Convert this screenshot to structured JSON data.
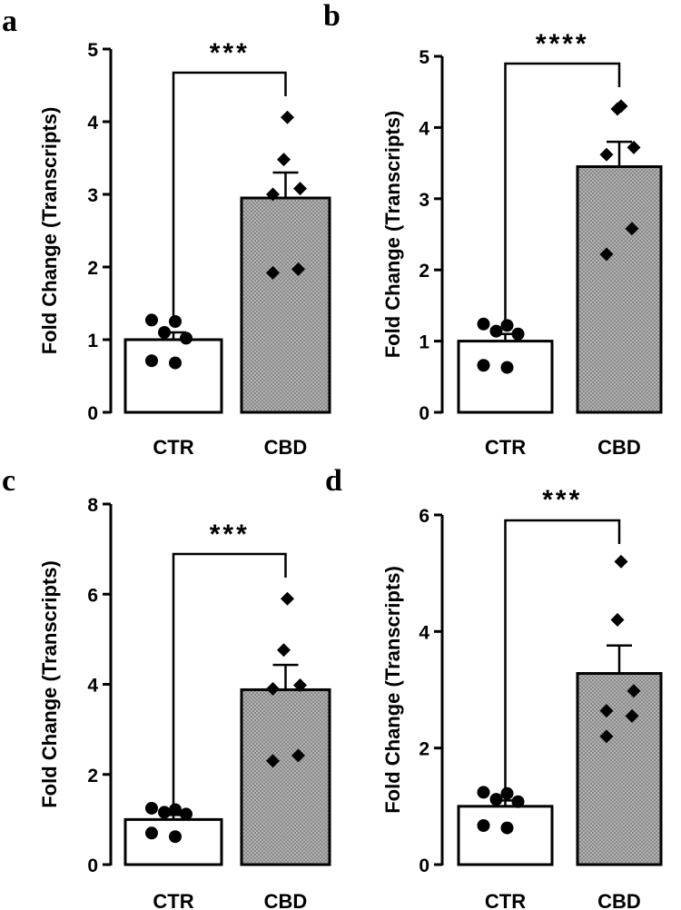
{
  "colors": {
    "ink": "#000000",
    "bar_ctr": "#ffffff",
    "bar_cbd": "#9a9a9a",
    "background": "#ffffff"
  },
  "chart_data": [
    {
      "panel": "a",
      "type": "bar",
      "ylabel": "Fold Change (Transcripts)",
      "categories": [
        "CTR",
        "CBD"
      ],
      "values": [
        1.0,
        2.95
      ],
      "errors": [
        0.1,
        0.35
      ],
      "ylim": [
        0,
        5
      ],
      "yticks": [
        0,
        1,
        2,
        3,
        4,
        5
      ],
      "significance": "***",
      "points": [
        [
          1.27,
          1.25,
          1.1,
          1.02,
          0.71,
          0.68
        ],
        [
          4.06,
          3.48,
          3.08,
          3.0,
          1.97,
          1.92
        ]
      ]
    },
    {
      "panel": "b",
      "type": "bar",
      "ylabel": "Fold Change (Transcripts)",
      "categories": [
        "CTR",
        "CBD"
      ],
      "values": [
        1.0,
        3.45
      ],
      "errors": [
        0.1,
        0.35
      ],
      "ylim": [
        0,
        5
      ],
      "yticks": [
        0,
        1,
        2,
        3,
        4,
        5
      ],
      "significance": "****",
      "points": [
        [
          1.24,
          1.22,
          1.14,
          1.1,
          0.66,
          0.63
        ],
        [
          4.3,
          4.26,
          3.72,
          3.62,
          2.58,
          2.22
        ]
      ]
    },
    {
      "panel": "c",
      "type": "bar",
      "ylabel": "Fold Change (Transcripts)",
      "categories": [
        "CTR",
        "CBD"
      ],
      "values": [
        1.0,
        3.88
      ],
      "errors": [
        0.1,
        0.55
      ],
      "ylim": [
        0,
        8
      ],
      "yticks": [
        0,
        2,
        4,
        6,
        8
      ],
      "significance": "***",
      "points": [
        [
          1.25,
          1.22,
          1.16,
          1.12,
          0.7,
          0.62
        ],
        [
          5.9,
          4.76,
          3.98,
          3.9,
          2.42,
          2.3
        ]
      ]
    },
    {
      "panel": "d",
      "type": "bar",
      "ylabel": "Fold Change (Transcripts)",
      "categories": [
        "CTR",
        "CBD"
      ],
      "values": [
        1.0,
        3.28
      ],
      "errors": [
        0.1,
        0.48
      ],
      "ylim": [
        0,
        6
      ],
      "yticks": [
        0,
        2,
        4,
        6
      ],
      "significance": "***",
      "points": [
        [
          1.24,
          1.22,
          1.12,
          1.08,
          0.67,
          0.63
        ],
        [
          5.2,
          4.2,
          2.98,
          2.64,
          2.55,
          2.2
        ]
      ]
    }
  ]
}
